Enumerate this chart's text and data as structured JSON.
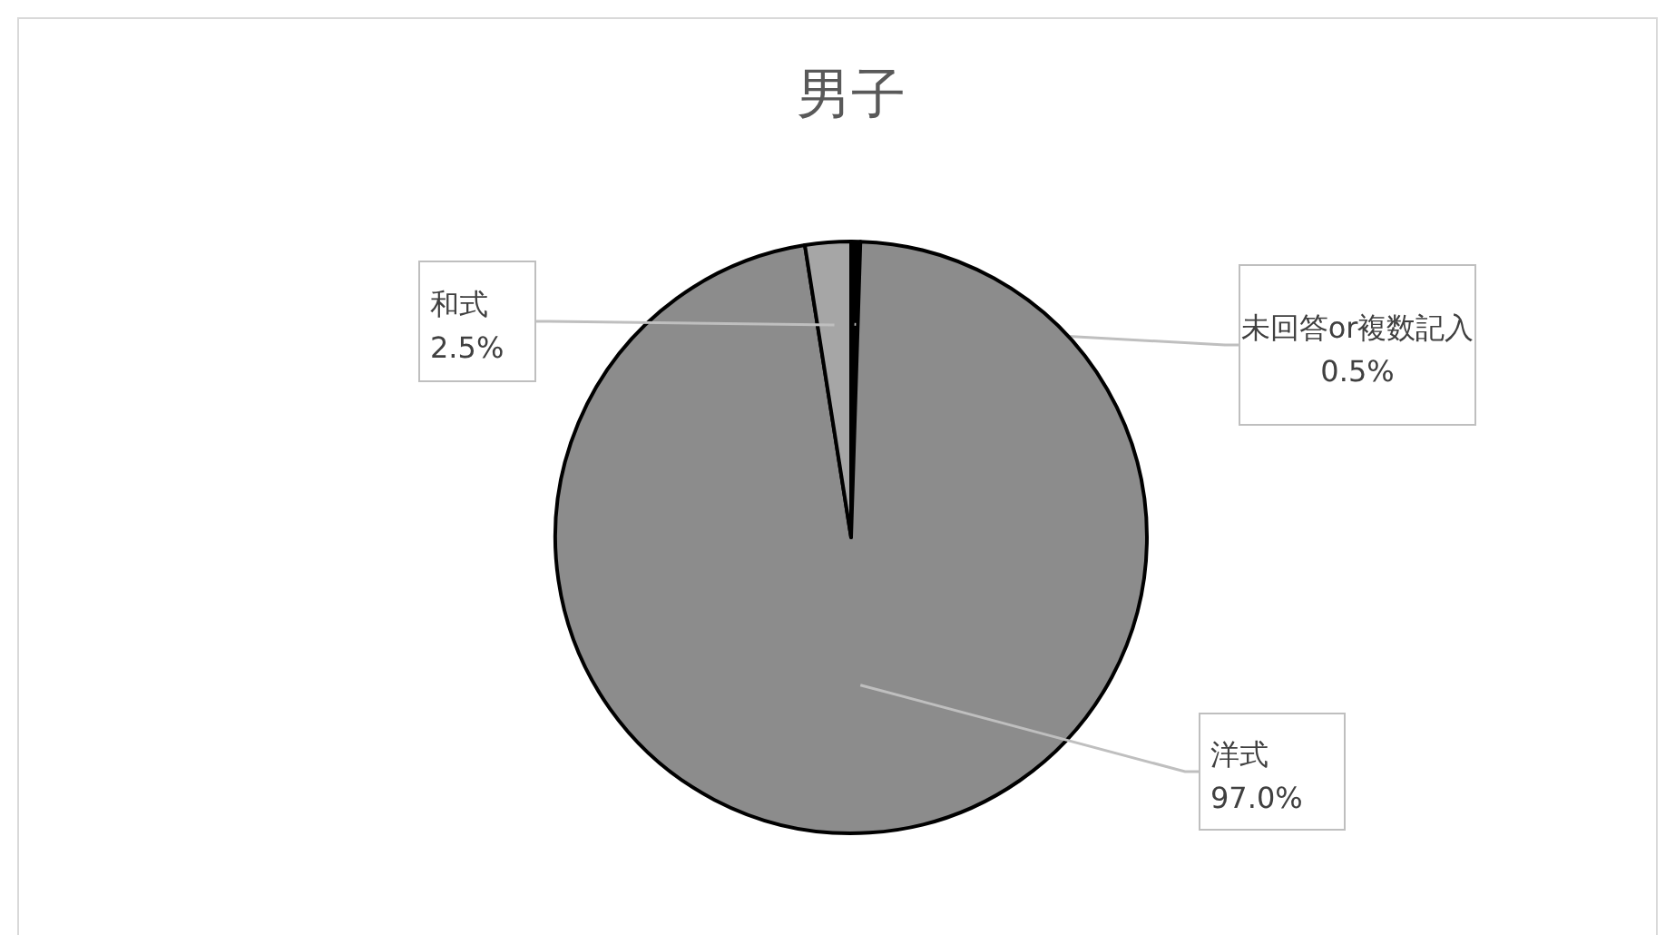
{
  "chart_data": {
    "type": "pie",
    "title": "男子",
    "categories": [
      "未回答or複数記入",
      "洋式",
      "和式"
    ],
    "values": [
      0.5,
      97.0,
      2.5
    ],
    "value_labels": [
      "0.5%",
      "97.0%",
      "2.5%"
    ],
    "colors": [
      "#000000",
      "#8c8c8c",
      "#a6a6a6"
    ]
  }
}
